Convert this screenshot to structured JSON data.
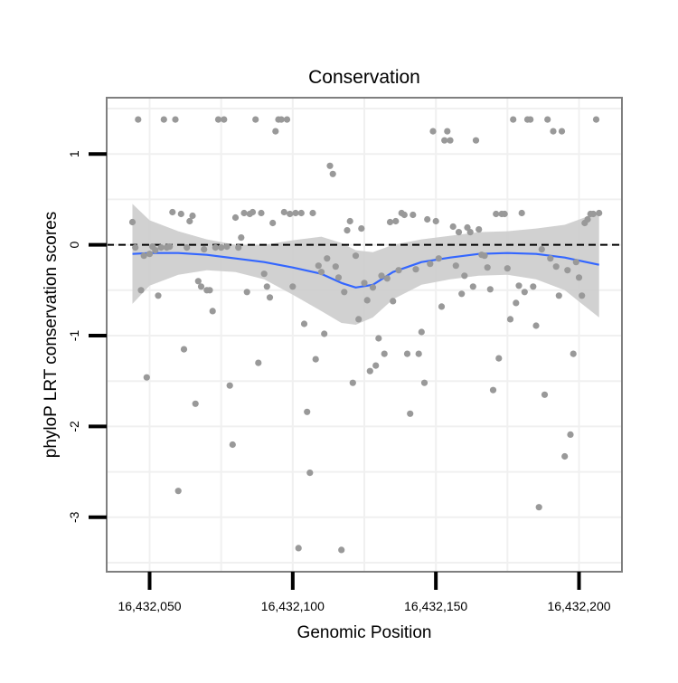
{
  "chart_data": {
    "type": "scatter",
    "title": "Conservation",
    "xlabel": "Genomic Position",
    "ylabel": "phyloP LRT conservation scores",
    "xlim": [
      16432035,
      16432215
    ],
    "ylim": [
      -3.6,
      1.62
    ],
    "x_ticks": [
      16432050,
      16432100,
      16432150,
      16432200
    ],
    "x_tick_labels": [
      "16,432,050",
      "16,432,100",
      "16,432,150",
      "16,432,200"
    ],
    "y_ticks": [
      -3,
      -2,
      -1,
      0,
      1
    ],
    "y_tick_labels": [
      "-3",
      "-2",
      "-1",
      "0",
      "1"
    ],
    "grid": true,
    "reference_line": {
      "y": 0,
      "style": "dashed",
      "color": "#000000"
    },
    "colors": {
      "points": "#999999",
      "smooth_line": "#3366ff",
      "confidence_band": "#cccccc",
      "panel_border": "#7f7f7f",
      "grid": "#f0f0f0"
    },
    "points": [
      [
        16432044,
        0.25
      ],
      [
        16432045,
        -0.03
      ],
      [
        16432046,
        1.38
      ],
      [
        16432047,
        -0.5
      ],
      [
        16432048,
        -0.12
      ],
      [
        16432049,
        -1.46
      ],
      [
        16432050,
        -0.1
      ],
      [
        16432051,
        -0.02
      ],
      [
        16432052,
        -0.06
      ],
      [
        16432053,
        -0.56
      ],
      [
        16432054,
        -0.03
      ],
      [
        16432055,
        1.38
      ],
      [
        16432056,
        -0.03
      ],
      [
        16432057,
        -0.02
      ],
      [
        16432058,
        0.36
      ],
      [
        16432059,
        1.38
      ],
      [
        16432060,
        -2.71
      ],
      [
        16432061,
        0.34
      ],
      [
        16432062,
        -1.15
      ],
      [
        16432063,
        -0.03
      ],
      [
        16432064,
        0.26
      ],
      [
        16432065,
        0.32
      ],
      [
        16432066,
        -1.75
      ],
      [
        16432067,
        -0.4
      ],
      [
        16432068,
        -0.46
      ],
      [
        16432069,
        -0.05
      ],
      [
        16432070,
        -0.5
      ],
      [
        16432071,
        -0.5
      ],
      [
        16432072,
        -0.73
      ],
      [
        16432073,
        -0.03
      ],
      [
        16432074,
        1.38
      ],
      [
        16432075,
        -0.03
      ],
      [
        16432076,
        1.38
      ],
      [
        16432077,
        -0.02
      ],
      [
        16432078,
        -1.55
      ],
      [
        16432079,
        -2.2
      ],
      [
        16432080,
        0.3
      ],
      [
        16432081,
        -0.03
      ],
      [
        16432082,
        0.08
      ],
      [
        16432083,
        0.35
      ],
      [
        16432084,
        -0.52
      ],
      [
        16432085,
        0.34
      ],
      [
        16432086,
        0.36
      ],
      [
        16432087,
        1.38
      ],
      [
        16432088,
        -1.3
      ],
      [
        16432089,
        0.35
      ],
      [
        16432090,
        -0.32
      ],
      [
        16432091,
        -0.46
      ],
      [
        16432092,
        -0.58
      ],
      [
        16432093,
        0.24
      ],
      [
        16432094,
        1.25
      ],
      [
        16432095,
        1.38
      ],
      [
        16432096,
        1.38
      ],
      [
        16432097,
        0.36
      ],
      [
        16432098,
        1.38
      ],
      [
        16432099,
        0.34
      ],
      [
        16432100,
        -0.46
      ],
      [
        16432101,
        0.35
      ],
      [
        16432102,
        -3.34
      ],
      [
        16432103,
        0.35
      ],
      [
        16432104,
        -0.87
      ],
      [
        16432105,
        -1.84
      ],
      [
        16432106,
        -2.51
      ],
      [
        16432107,
        0.35
      ],
      [
        16432108,
        -1.26
      ],
      [
        16432109,
        -0.23
      ],
      [
        16432110,
        -0.3
      ],
      [
        16432111,
        -0.98
      ],
      [
        16432112,
        -0.15
      ],
      [
        16432113,
        0.87
      ],
      [
        16432114,
        0.78
      ],
      [
        16432115,
        -0.24
      ],
      [
        16432116,
        -0.36
      ],
      [
        16432117,
        -3.36
      ],
      [
        16432118,
        -0.52
      ],
      [
        16432119,
        0.16
      ],
      [
        16432120,
        0.26
      ],
      [
        16432121,
        -1.52
      ],
      [
        16432122,
        -0.12
      ],
      [
        16432123,
        -0.82
      ],
      [
        16432124,
        0.18
      ],
      [
        16432125,
        -0.42
      ],
      [
        16432126,
        -0.61
      ],
      [
        16432127,
        -1.39
      ],
      [
        16432128,
        -0.47
      ],
      [
        16432129,
        -1.33
      ],
      [
        16432130,
        -1.03
      ],
      [
        16432131,
        -0.34
      ],
      [
        16432132,
        -1.2
      ],
      [
        16432133,
        -0.37
      ],
      [
        16432134,
        0.25
      ],
      [
        16432135,
        -0.62
      ],
      [
        16432136,
        0.26
      ],
      [
        16432137,
        -0.28
      ],
      [
        16432138,
        0.35
      ],
      [
        16432139,
        0.33
      ],
      [
        16432140,
        -1.2
      ],
      [
        16432141,
        -1.86
      ],
      [
        16432142,
        0.33
      ],
      [
        16432143,
        -0.27
      ],
      [
        16432144,
        -1.2
      ],
      [
        16432145,
        -0.96
      ],
      [
        16432146,
        -1.52
      ],
      [
        16432147,
        0.28
      ],
      [
        16432148,
        -0.21
      ],
      [
        16432149,
        1.25
      ],
      [
        16432150,
        0.26
      ],
      [
        16432151,
        -0.15
      ],
      [
        16432152,
        -0.68
      ],
      [
        16432153,
        1.15
      ],
      [
        16432154,
        1.25
      ],
      [
        16432155,
        1.15
      ],
      [
        16432156,
        0.2
      ],
      [
        16432157,
        -0.23
      ],
      [
        16432158,
        0.14
      ],
      [
        16432159,
        -0.54
      ],
      [
        16432160,
        -0.34
      ],
      [
        16432161,
        0.19
      ],
      [
        16432162,
        0.14
      ],
      [
        16432163,
        -0.46
      ],
      [
        16432164,
        1.15
      ],
      [
        16432165,
        0.17
      ],
      [
        16432166,
        -0.11
      ],
      [
        16432167,
        -0.12
      ],
      [
        16432168,
        -0.25
      ],
      [
        16432169,
        -0.49
      ],
      [
        16432170,
        -1.6
      ],
      [
        16432171,
        0.34
      ],
      [
        16432172,
        -1.25
      ],
      [
        16432173,
        0.34
      ],
      [
        16432174,
        0.34
      ],
      [
        16432175,
        -0.26
      ],
      [
        16432176,
        -0.82
      ],
      [
        16432177,
        1.38
      ],
      [
        16432178,
        -0.64
      ],
      [
        16432179,
        -0.45
      ],
      [
        16432180,
        0.35
      ],
      [
        16432181,
        -0.52
      ],
      [
        16432182,
        1.38
      ],
      [
        16432183,
        1.38
      ],
      [
        16432184,
        -0.46
      ],
      [
        16432185,
        -0.89
      ],
      [
        16432186,
        -2.89
      ],
      [
        16432187,
        -0.05
      ],
      [
        16432188,
        -1.65
      ],
      [
        16432189,
        1.38
      ],
      [
        16432190,
        -0.15
      ],
      [
        16432191,
        1.25
      ],
      [
        16432192,
        -0.24
      ],
      [
        16432193,
        -0.56
      ],
      [
        16432194,
        1.25
      ],
      [
        16432195,
        -2.33
      ],
      [
        16432196,
        -0.28
      ],
      [
        16432197,
        -2.09
      ],
      [
        16432198,
        -1.2
      ],
      [
        16432199,
        -0.19
      ],
      [
        16432200,
        -0.36
      ],
      [
        16432201,
        -0.56
      ],
      [
        16432202,
        0.24
      ],
      [
        16432203,
        0.28
      ],
      [
        16432204,
        0.34
      ],
      [
        16432205,
        0.34
      ],
      [
        16432206,
        1.38
      ],
      [
        16432207,
        0.35
      ]
    ],
    "smooth": [
      [
        16432044,
        -0.1
      ],
      [
        16432050,
        -0.09
      ],
      [
        16432060,
        -0.09
      ],
      [
        16432070,
        -0.11
      ],
      [
        16432080,
        -0.15
      ],
      [
        16432090,
        -0.19
      ],
      [
        16432100,
        -0.25
      ],
      [
        16432110,
        -0.32
      ],
      [
        16432117,
        -0.42
      ],
      [
        16432122,
        -0.47
      ],
      [
        16432128,
        -0.44
      ],
      [
        16432135,
        -0.3
      ],
      [
        16432145,
        -0.19
      ],
      [
        16432155,
        -0.14
      ],
      [
        16432165,
        -0.1
      ],
      [
        16432175,
        -0.09
      ],
      [
        16432185,
        -0.1
      ],
      [
        16432195,
        -0.14
      ],
      [
        16432207,
        -0.22
      ]
    ],
    "smooth_lower": [
      [
        16432044,
        -0.65
      ],
      [
        16432050,
        -0.45
      ],
      [
        16432060,
        -0.33
      ],
      [
        16432070,
        -0.28
      ],
      [
        16432080,
        -0.3
      ],
      [
        16432090,
        -0.38
      ],
      [
        16432100,
        -0.55
      ],
      [
        16432110,
        -0.73
      ],
      [
        16432117,
        -0.86
      ],
      [
        16432122,
        -0.88
      ],
      [
        16432128,
        -0.8
      ],
      [
        16432135,
        -0.6
      ],
      [
        16432145,
        -0.44
      ],
      [
        16432155,
        -0.38
      ],
      [
        16432165,
        -0.34
      ],
      [
        16432175,
        -0.33
      ],
      [
        16432185,
        -0.38
      ],
      [
        16432195,
        -0.5
      ],
      [
        16432207,
        -0.8
      ]
    ],
    "smooth_upper": [
      [
        16432044,
        0.45
      ],
      [
        16432050,
        0.27
      ],
      [
        16432060,
        0.15
      ],
      [
        16432070,
        0.06
      ],
      [
        16432080,
        0.0
      ],
      [
        16432090,
        0.0
      ],
      [
        16432100,
        0.05
      ],
      [
        16432110,
        0.09
      ],
      [
        16432117,
        0.02
      ],
      [
        16432122,
        -0.06
      ],
      [
        16432128,
        -0.08
      ],
      [
        16432135,
        0.0
      ],
      [
        16432145,
        0.06
      ],
      [
        16432155,
        0.1
      ],
      [
        16432165,
        0.14
      ],
      [
        16432175,
        0.15
      ],
      [
        16432185,
        0.18
      ],
      [
        16432195,
        0.22
      ],
      [
        16432207,
        0.36
      ]
    ]
  }
}
